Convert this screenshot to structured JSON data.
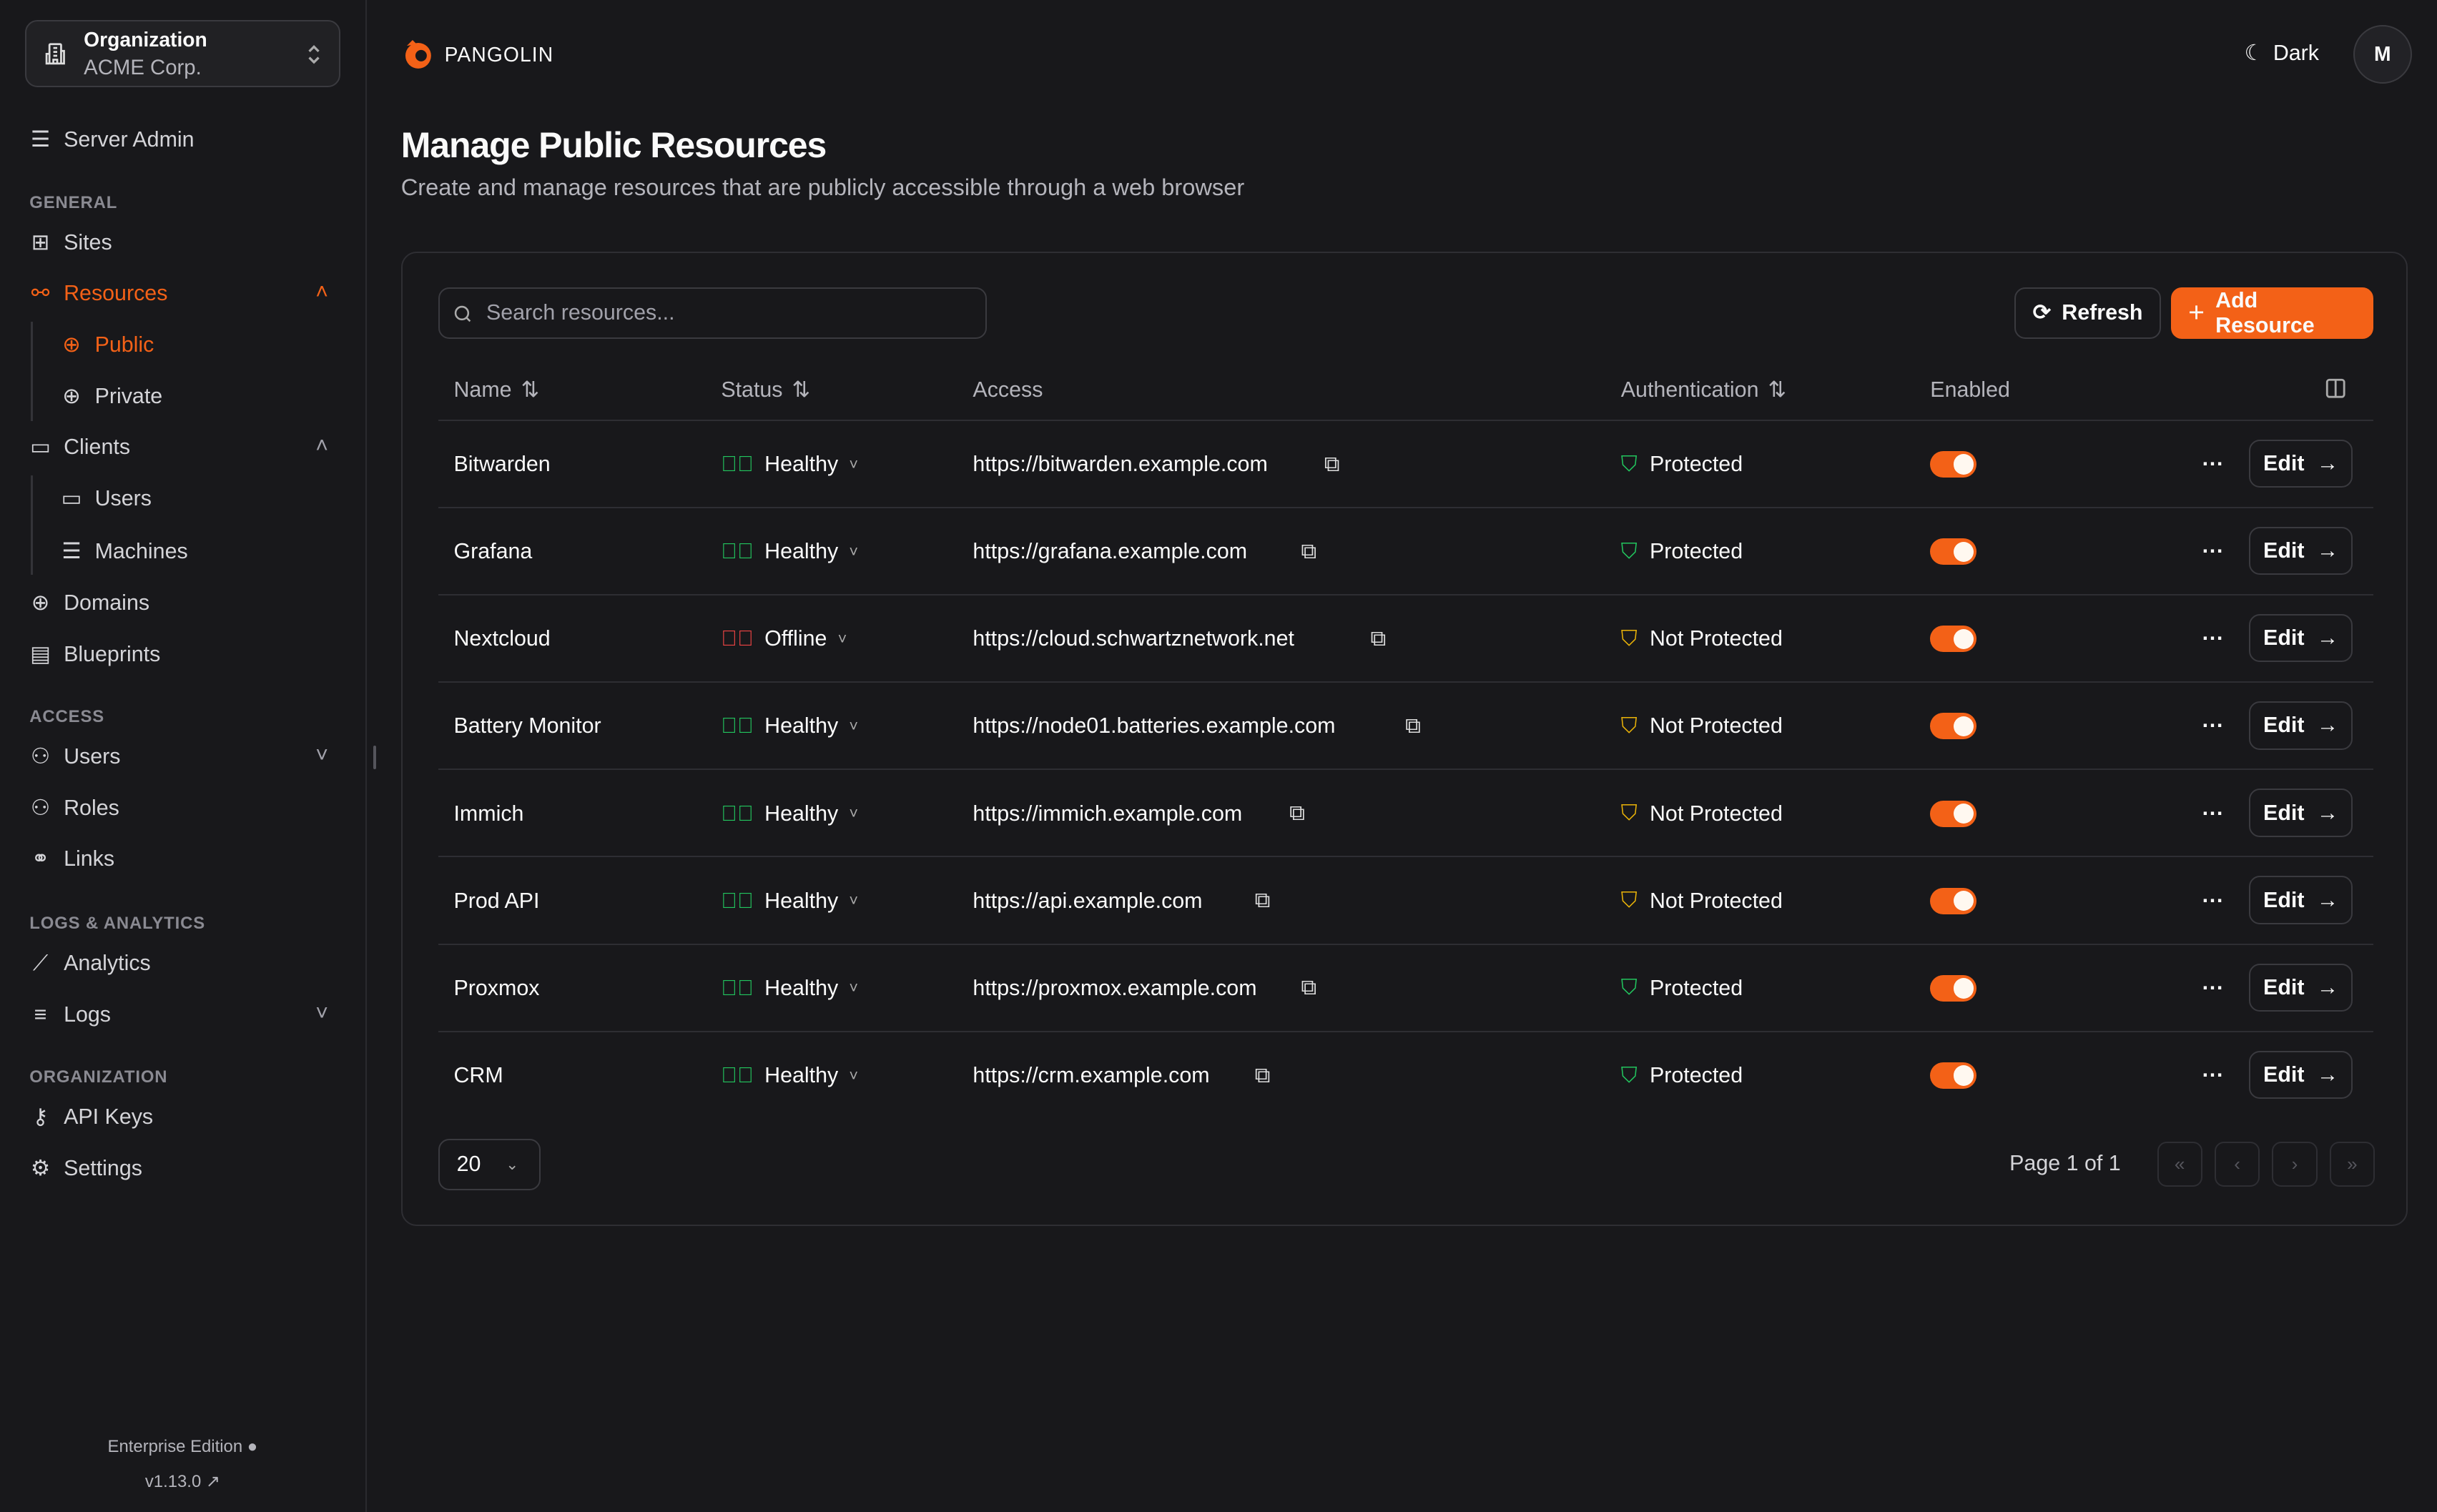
{
  "org": {
    "label": "Organization",
    "name": "ACME Corp."
  },
  "sidebar": {
    "server_admin": "Server Admin",
    "sections": {
      "general": "GENERAL",
      "access": "ACCESS",
      "logs": "LOGS & ANALYTICS",
      "organization": "ORGANIZATION"
    },
    "items": {
      "sites": "Sites",
      "resources": "Resources",
      "public": "Public",
      "private": "Private",
      "clients": "Clients",
      "users_client": "Users",
      "machines": "Machines",
      "domains": "Domains",
      "blueprints": "Blueprints",
      "users": "Users",
      "roles": "Roles",
      "links": "Links",
      "analytics": "Analytics",
      "logs": "Logs",
      "api_keys": "API Keys",
      "settings": "Settings"
    },
    "edition": "Enterprise Edition",
    "version": "v1.13.0"
  },
  "header": {
    "brand": "PANGOLIN",
    "theme": "Dark",
    "avatar": "M"
  },
  "page": {
    "title": "Manage Public Resources",
    "subtitle": "Create and manage resources that are publicly accessible through a web browser"
  },
  "toolbar": {
    "search_placeholder": "Search resources...",
    "refresh": "Refresh",
    "add": "Add Resource"
  },
  "table": {
    "columns": {
      "name": "Name",
      "status": "Status",
      "access": "Access",
      "auth": "Authentication",
      "enabled": "Enabled"
    },
    "edit_label": "Edit",
    "rows": [
      {
        "name": "Bitwarden",
        "status": "Healthy",
        "access": "https://bitwarden.example.com",
        "auth": "Protected",
        "enabled": true
      },
      {
        "name": "Grafana",
        "status": "Healthy",
        "access": "https://grafana.example.com",
        "auth": "Protected",
        "enabled": true
      },
      {
        "name": "Nextcloud",
        "status": "Offline",
        "access": "https://cloud.schwartznetwork.net",
        "auth": "Not Protected",
        "enabled": true
      },
      {
        "name": "Battery Monitor",
        "status": "Healthy",
        "access": "https://node01.batteries.example.com",
        "auth": "Not Protected",
        "enabled": true
      },
      {
        "name": "Immich",
        "status": "Healthy",
        "access": "https://immich.example.com",
        "auth": "Not Protected",
        "enabled": true
      },
      {
        "name": "Prod API",
        "status": "Healthy",
        "access": "https://api.example.com",
        "auth": "Not Protected",
        "enabled": true
      },
      {
        "name": "Proxmox",
        "status": "Healthy",
        "access": "https://proxmox.example.com",
        "auth": "Protected",
        "enabled": true
      },
      {
        "name": "CRM",
        "status": "Healthy",
        "access": "https://crm.example.com",
        "auth": "Protected",
        "enabled": true
      }
    ]
  },
  "pagination": {
    "page_size": "20",
    "page_info": "Page 1 of 1"
  },
  "colors": {
    "accent": "#f36117",
    "healthy": "#22c55e",
    "offline": "#ef4444",
    "warning": "#eab308",
    "background": "#18181b"
  }
}
